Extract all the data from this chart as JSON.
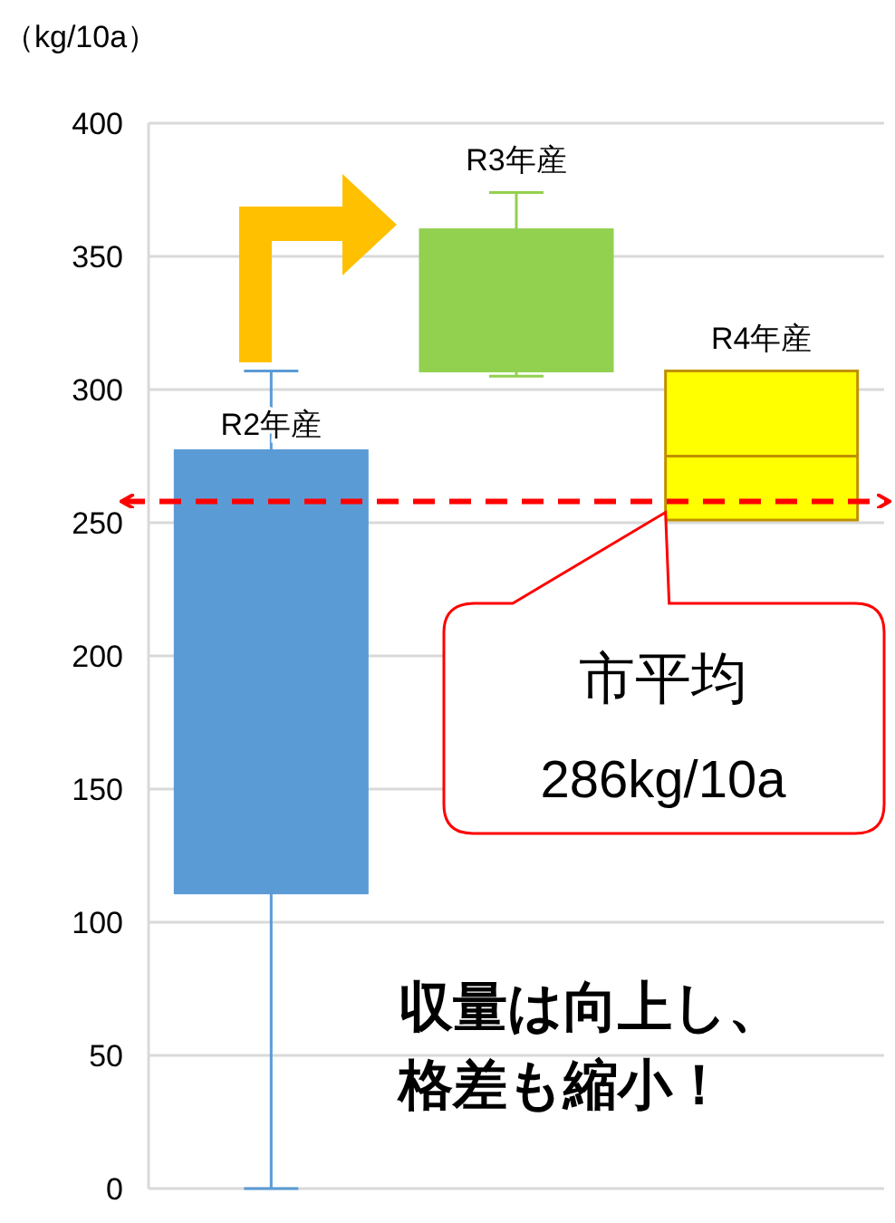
{
  "chart_data": {
    "type": "box",
    "ylabel": "（kg/10a）",
    "categories": [
      "R2年産",
      "R3年産",
      "R4年産"
    ],
    "colors": [
      "#5b9bd5",
      "#92d050",
      "#ffff00"
    ],
    "boxes": [
      {
        "low": 0,
        "q1": 111,
        "median": 277,
        "q3": 277,
        "high": 307
      },
      {
        "low": 305,
        "q1": 307,
        "median": 307,
        "q3": 360,
        "high": 374
      },
      {
        "low": 251,
        "q1": 251,
        "median": 275,
        "q3": 307,
        "high": 307
      }
    ],
    "ylim": [
      0,
      400
    ],
    "yticks": [
      0,
      50,
      100,
      150,
      200,
      250,
      300,
      350,
      400
    ],
    "grid": "y",
    "tick_labels": "y",
    "ref_lines": [
      {
        "axis": "y",
        "value": 258,
        "label": "市平均 286kg/10a",
        "color": "#ff0000",
        "line_style": "dashed"
      }
    ],
    "annotations": [
      "収量は向上し、",
      "格差も縮小！"
    ]
  }
}
